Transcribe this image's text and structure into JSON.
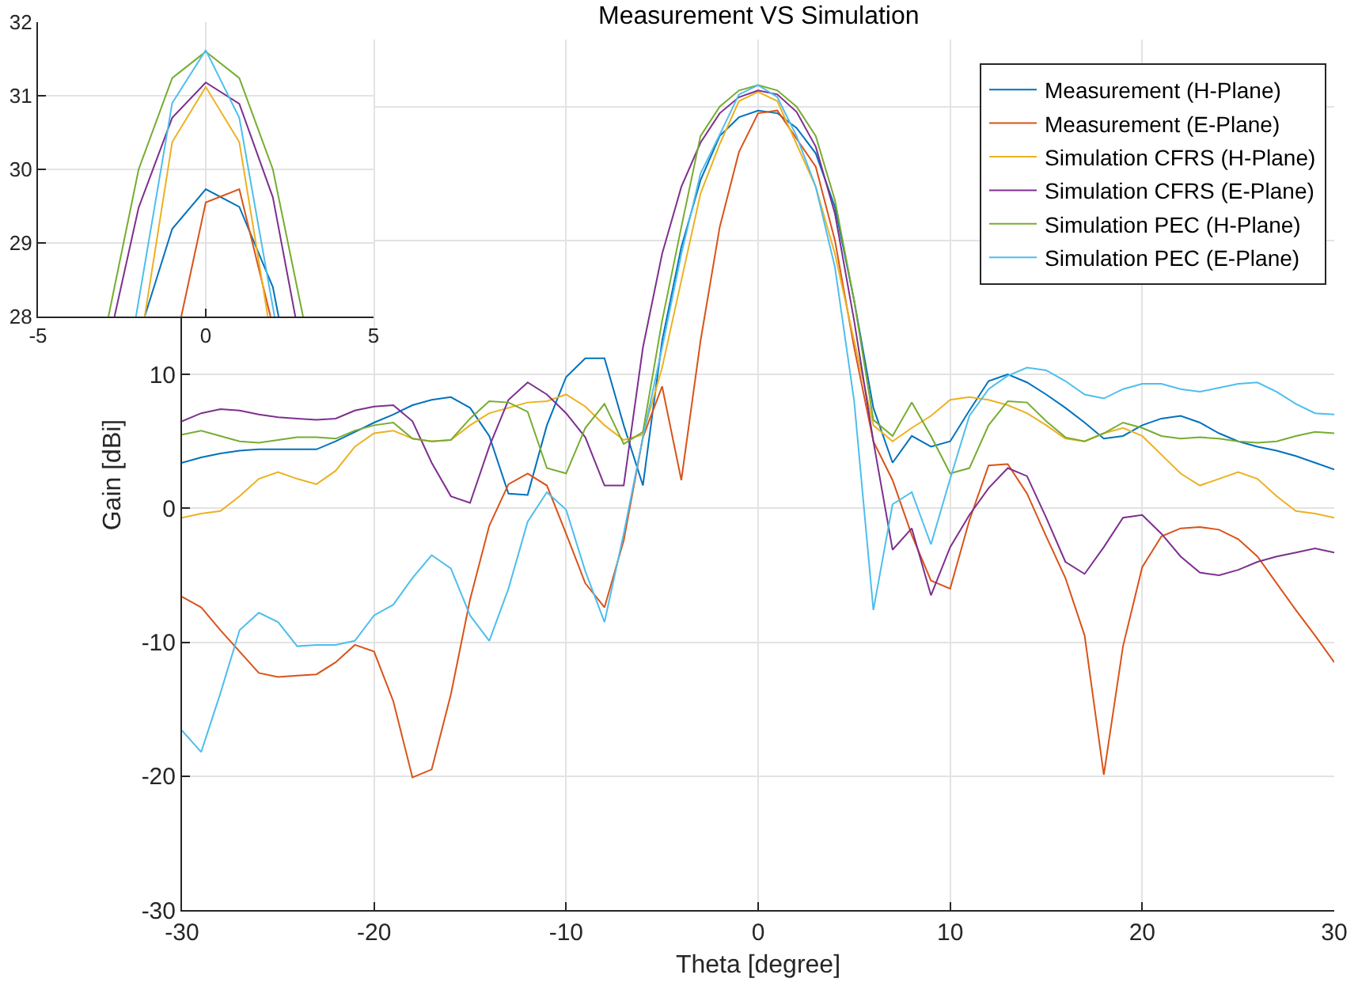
{
  "chart_data": [
    {
      "type": "line",
      "title": "Measurement VS Simulation",
      "xlabel": "Theta [degree]",
      "ylabel": "Gain [dBi]",
      "x": [
        -30,
        -29,
        -28,
        -27,
        -26,
        -25,
        -24,
        -23,
        -22,
        -21,
        -20,
        -19,
        -18,
        -17,
        -16,
        -15,
        -14,
        -13,
        -12,
        -11,
        -10,
        -9,
        -8,
        -7,
        -6,
        -5,
        -4,
        -3,
        -2,
        -1,
        0,
        1,
        2,
        3,
        4,
        5,
        6,
        7,
        8,
        9,
        10,
        11,
        12,
        13,
        14,
        15,
        16,
        17,
        18,
        19,
        20,
        21,
        22,
        23,
        24,
        25,
        26,
        27,
        28,
        29,
        30
      ],
      "series": [
        {
          "name": "Measurement (H-Plane)",
          "color": "#0072bd",
          "values": [
            3.4,
            3.8,
            4.1,
            4.3,
            4.4,
            4.4,
            4.4,
            4.4,
            5.0,
            5.7,
            6.4,
            7.0,
            7.7,
            8.1,
            8.3,
            7.5,
            5.4,
            1.1,
            1.0,
            6.2,
            9.8,
            11.2,
            11.2,
            6.2,
            1.7,
            12.5,
            19.5,
            24.5,
            27.8,
            29.2,
            29.7,
            29.5,
            28.4,
            26.5,
            22.5,
            15.5,
            7.5,
            3.4,
            5.4,
            4.6,
            5.0,
            7.3,
            9.5,
            10.0,
            9.4,
            8.5,
            7.5,
            6.4,
            5.2,
            5.4,
            6.2,
            6.7,
            6.9,
            6.4,
            5.6,
            5.0,
            4.6,
            4.3,
            3.9,
            3.4,
            2.9
          ]
        },
        {
          "name": "Measurement (E-Plane)",
          "color": "#d95319",
          "values": [
            -6.6,
            -7.4,
            -9.1,
            -10.7,
            -12.3,
            -12.6,
            -12.5,
            -12.4,
            -11.5,
            -10.2,
            -10.7,
            -14.4,
            -20.1,
            -19.5,
            -13.9,
            -6.8,
            -1.3,
            1.8,
            2.6,
            1.7,
            -1.9,
            -5.6,
            -7.4,
            -2.4,
            5.3,
            9.1,
            2.1,
            12.5,
            21,
            26.6,
            29.5,
            29.7,
            27.6,
            25.5,
            20,
            12,
            5,
            2.1,
            -2.0,
            -5.4,
            -6.0,
            -0.9,
            3.2,
            3.3,
            1.1,
            -2.1,
            -5.2,
            -9.5,
            -19.9,
            -10.3,
            -4.4,
            -2.1,
            -1.5,
            -1.4,
            -1.6,
            -2.3,
            -3.6,
            -5.6,
            -7.6,
            -9.5,
            -11.5
          ]
        },
        {
          "name": "Simulation CFRS (H-Plane)",
          "color": "#edb120",
          "values": [
            -0.7,
            -0.4,
            -0.2,
            0.9,
            2.2,
            2.7,
            2.2,
            1.8,
            2.8,
            4.6,
            5.6,
            5.8,
            5.2,
            5.0,
            5.1,
            6.2,
            7.1,
            7.5,
            7.9,
            8.0,
            8.5,
            7.6,
            6.2,
            5.1,
            5.5,
            10.5,
            17,
            23.5,
            27.2,
            30.4,
            31.1,
            30.4,
            27.2,
            24,
            19,
            12.5,
            6.2,
            5.0,
            6.0,
            6.9,
            8.1,
            8.3,
            8.1,
            7.7,
            7.1,
            6.2,
            5.2,
            5.0,
            5.6,
            6.0,
            5.4,
            4.0,
            2.6,
            1.7,
            2.2,
            2.7,
            2.2,
            0.9,
            -0.2,
            -0.4,
            -0.7
          ]
        },
        {
          "name": "Simulation CFRS (E-Plane)",
          "color": "#7e2f8e",
          "values": [
            6.5,
            7.1,
            7.4,
            7.3,
            7.0,
            6.8,
            6.7,
            6.6,
            6.7,
            7.3,
            7.6,
            7.7,
            6.5,
            3.4,
            0.9,
            0.4,
            4.6,
            8.1,
            9.4,
            8.5,
            7.1,
            5.3,
            1.7,
            1.7,
            12,
            19,
            24,
            27.3,
            29.5,
            30.7,
            31.2,
            30.9,
            29.6,
            27,
            22,
            14,
            5,
            -3.1,
            -1.5,
            -6.5,
            -2.9,
            -0.5,
            1.5,
            3.0,
            2.4,
            -0.7,
            -4.0,
            -4.9,
            -2.9,
            -0.7,
            -0.5,
            -1.9,
            -3.6,
            -4.8,
            -5.0,
            -4.6,
            -4.0,
            -3.6,
            -3.3,
            -3.0,
            -3.3
          ]
        },
        {
          "name": "Simulation PEC (H-Plane)",
          "color": "#77ac30",
          "values": [
            5.5,
            5.8,
            5.4,
            5.0,
            4.9,
            5.1,
            5.3,
            5.3,
            5.2,
            5.8,
            6.2,
            6.4,
            5.2,
            5.0,
            5.1,
            6.7,
            8.0,
            7.9,
            7.2,
            3.0,
            2.6,
            6.0,
            7.8,
            4.8,
            5.7,
            14,
            21,
            27.8,
            30.0,
            31.2,
            31.6,
            31.2,
            30.0,
            27.8,
            23,
            15.5,
            6.6,
            5.4,
            7.9,
            5.4,
            2.6,
            3.0,
            6.2,
            8.0,
            7.9,
            6.5,
            5.3,
            5.0,
            5.6,
            6.4,
            6.0,
            5.4,
            5.2,
            5.3,
            5.2,
            5.0,
            4.9,
            5.0,
            5.4,
            5.7,
            5.6
          ]
        },
        {
          "name": "Simulation PEC (E-Plane)",
          "color": "#4dbeee",
          "values": [
            -16.6,
            -18.2,
            -13.8,
            -9.1,
            -7.8,
            -8.5,
            -10.3,
            -10.2,
            -10.2,
            -9.9,
            -8.0,
            -7.2,
            -5.2,
            -3.5,
            -4.5,
            -8.0,
            -9.9,
            -6.0,
            -1.0,
            1.2,
            -0.1,
            -4.7,
            -8.5,
            -1.9,
            5.3,
            12,
            19,
            25,
            27.9,
            30.9,
            31.6,
            30.7,
            27.8,
            24,
            18,
            8,
            -7.6,
            0.3,
            1.2,
            -2.7,
            2.2,
            6.9,
            8.9,
            9.9,
            10.5,
            10.3,
            9.5,
            8.5,
            8.2,
            8.9,
            9.3,
            9.3,
            8.9,
            8.7,
            9.0,
            9.3,
            9.4,
            8.7,
            7.8,
            7.1,
            7.0
          ]
        }
      ],
      "xlim": [
        -30,
        30
      ],
      "ylim": [
        -30,
        35
      ],
      "xticks": [
        -30,
        -20,
        -10,
        0,
        10,
        20,
        30
      ],
      "yticks": [
        -30,
        -20,
        -10,
        0,
        10,
        {
          "value": 20,
          "label": null
        },
        {
          "value": 30,
          "label": null
        }
      ],
      "grid": true,
      "legend": "top right"
    },
    {
      "type": "line",
      "series": [
        {
          "color": "#0072bd",
          "x": [
            -1.82,
            -1,
            0,
            1,
            2,
            2.17
          ],
          "values": [
            28,
            29.19,
            29.73,
            29.49,
            28.4,
            28
          ]
        },
        {
          "color": "#d95319",
          "x": [
            -0.73,
            0,
            1,
            1.93
          ],
          "values": [
            28,
            29.55,
            29.73,
            28
          ]
        },
        {
          "color": "#edb120",
          "x": [
            -1.82,
            -1,
            0,
            1,
            1.85
          ],
          "values": [
            28,
            30.37,
            31.12,
            30.37,
            28
          ]
        },
        {
          "color": "#7e2f8e",
          "x": [
            -2.72,
            -2,
            -1,
            0,
            1,
            2,
            2.67
          ],
          "values": [
            28,
            29.48,
            30.7,
            31.18,
            30.89,
            29.62,
            28
          ]
        },
        {
          "color": "#77ac30",
          "x": [
            -2.9,
            -2,
            -1,
            0,
            1,
            2,
            2.9
          ],
          "values": [
            28,
            30.0,
            31.24,
            31.6,
            31.24,
            30.0,
            28
          ]
        },
        {
          "color": "#4dbeee",
          "x": [
            -2.08,
            -1,
            0,
            1,
            2.05
          ],
          "values": [
            28,
            30.9,
            31.62,
            30.7,
            28
          ]
        }
      ],
      "xlim": [
        -5,
        5
      ],
      "ylim": [
        28,
        32
      ],
      "xticks": [
        -5,
        0,
        5
      ],
      "yticks": [
        28,
        29,
        30,
        31,
        32
      ],
      "grid": true
    }
  ]
}
